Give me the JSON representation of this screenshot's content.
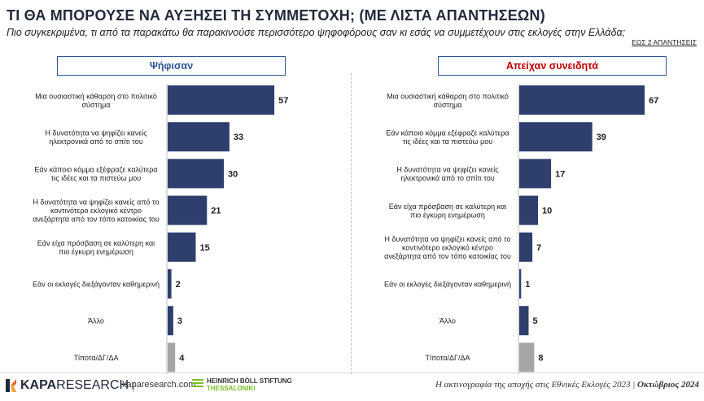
{
  "header": {
    "title": "ΤΙ ΘΑ ΜΠΟΡΟΥΣΕ ΝΑ ΑΥΞΗΣΕΙ ΤΗ ΣΥΜΜΕΤΟΧΗ; (ΜΕ ΛΙΣΤΑ ΑΠΑΝΤΗΣΕΩΝ)",
    "subtitle": "Πιο συγκεκριμένα, τι από τα παρακάτω θα παρακινούσε περισσότερο ψηφοφόρους σαν κι εσάς να συμμετέχουν στις εκλογές στην Ελλάδα;",
    "note": "ΕΩΣ 2 ΑΠΑΝΤΗΣΕΙΣ"
  },
  "colors": {
    "bar": "#2e3f6e",
    "bar_none": "#a6a6a6",
    "left_header_text": "#2f5597",
    "right_header_text": "#c00000"
  },
  "chart_data": [
    {
      "type": "bar",
      "orientation": "horizontal",
      "title": "Ψήφισαν",
      "categories": [
        "Μια ουσιαστική κάθαρση στο πολιτικό σύστημα",
        "Η δυνατότητα να ψηφίζει κανείς ηλεκτρονικά από το σπίτι του",
        "Εάν κάποιο κόμμα εξέφραζε καλύτερα τις ιδέες και τα πιστεύω μου",
        "Η δυνατότητα να ψηφίζει κανείς από το κοντινότερο εκλογικό κέντρο ανεξάρτητα από τον τόπο κατοικίας του",
        "Εάν είχα πρόσβαση σε καλύτερη και πιο έγκυρη ενημέρωση",
        "Εάν οι εκλογές διεξάγονταν καθημερινή",
        "Άλλο",
        "Τίποτα/ΔΓ/ΔΑ"
      ],
      "labels": [
        [
          "Μια ουσιαστική κάθαρση στο πολιτικό",
          "σύστημα"
        ],
        [
          "Η δυνατότητα να ψηφίζει κανείς",
          "ηλεκτρονικά από το σπίτι του"
        ],
        [
          "Εάν κάποιο κόμμα εξέφραζε καλύτερα",
          "τις ιδέες και τα πιστεύω μου"
        ],
        [
          "Η δυνατότητα να ψηφίζει κανείς από το",
          "κοντινότερο εκλογικό κέντρο",
          "ανεξάρτητα από τον τόπο κατοικίας του"
        ],
        [
          "Εάν είχα πρόσβαση σε καλύτερη και",
          "πιο έγκυρη ενημέρωση"
        ],
        [
          "Εάν οι εκλογές διεξάγονταν καθημερινή"
        ],
        [
          "Άλλο"
        ],
        [
          "Τίποτα/ΔΓ/ΔΑ"
        ]
      ],
      "values": [
        57,
        33,
        30,
        21,
        15,
        2,
        3,
        4
      ],
      "xlim": [
        0,
        70
      ]
    },
    {
      "type": "bar",
      "orientation": "horizontal",
      "title": "Απείχαν συνειδητά",
      "categories": [
        "Μια ουσιαστική κάθαρση στο πολιτικό σύστημα",
        "Εάν κάποιο κόμμα εξέφραζε καλύτερα τις ιδέες και τα πιστεύω μου",
        "Η δυνατότητα να ψηφίζει κανείς ηλεκτρονικά από το σπίτι του",
        "Εάν είχα πρόσβαση σε καλύτερη και πιο έγκυρη ενημέρωση",
        "Η δυνατότητα να ψηφίζει κανείς από το κοντινότερο εκλογικό κέντρο ανεξάρτητα από τον τόπο κατοικίας του",
        "Εάν οι εκλογές διεξάγονταν καθημερινή",
        "Άλλο",
        "Τίποτα/ΔΓ/ΔΑ"
      ],
      "labels": [
        [
          "Μια ουσιαστική κάθαρση στο πολιτικό",
          "σύστημα"
        ],
        [
          "Εάν κάποιο κόμμα εξέφραζε καλύτερα",
          "τις ιδέες και τα πιστεύω μου"
        ],
        [
          "Η δυνατότητα να ψηφίζει κανείς",
          "ηλεκτρονικά από το σπίτι του"
        ],
        [
          "Εάν είχα πρόσβαση σε καλύτερη και",
          "πιο έγκυρη ενημέρωση"
        ],
        [
          "Η δυνατότητα να ψηφίζει κανείς από το",
          "κοντινότερο εκλογικό κέντρο",
          "ανεξάρτητα από τον τόπο κατοικίας του"
        ],
        [
          "Εάν οι εκλογές διεξάγονταν καθημερινή"
        ],
        [
          "Άλλο"
        ],
        [
          "Τίποτα/ΔΓ/ΔΑ"
        ]
      ],
      "values": [
        67,
        39,
        17,
        10,
        7,
        1,
        5,
        8
      ],
      "xlim": [
        0,
        80
      ]
    }
  ],
  "footer": {
    "logo_bold": "KAPA",
    "logo_light": "RESEARCH",
    "url": "kaparesearch.com",
    "partner_line1": "HEINRICH BÖLL STIFTUNG",
    "partner_line2": "THESSALONIKI",
    "source": "Η ακτινογραφία της αποχής στις Εθνικές Εκλογές 2023 |",
    "date": "Οκτώβριος 2024"
  }
}
